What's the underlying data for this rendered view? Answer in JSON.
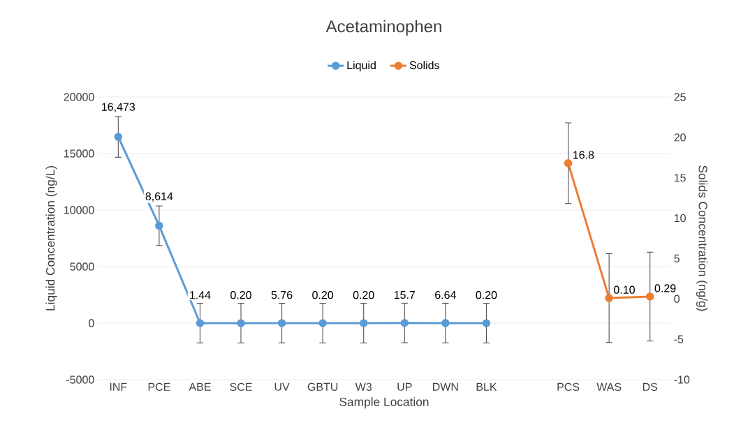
{
  "chart_data": {
    "type": "line",
    "title": "Acetaminophen",
    "xlabel": "Sample Location",
    "ylabel": "Liquid Concentration (ng/L)",
    "y2label": "Solids Concentration (ng/g)",
    "categories": [
      "INF",
      "PCE",
      "ABE",
      "SCE",
      "UV",
      "GBTU",
      "W3",
      "UP",
      "DWN",
      "BLK",
      null,
      "PCS",
      "WAS",
      "DS"
    ],
    "series": [
      {
        "name": "Liquid",
        "color": "#5b9bd5",
        "values": [
          16473,
          8614,
          1.44,
          0.2,
          5.76,
          0.2,
          0.2,
          15.7,
          6.64,
          0.2,
          null,
          null,
          null,
          null
        ],
        "errors": [
          1800,
          1750,
          1750,
          1750,
          1750,
          1750,
          1750,
          1750,
          1750,
          1750,
          null,
          null,
          null,
          null
        ],
        "value_labels": [
          "16,473",
          "8,614",
          "1.44",
          "0.20",
          "5.76",
          "0.20",
          "0.20",
          "15.7",
          "6.64",
          "0.20",
          null,
          null,
          null,
          null
        ]
      },
      {
        "name": "Solids",
        "color": "#ed7d31",
        "axis": "y2",
        "values": [
          null,
          null,
          null,
          null,
          null,
          null,
          null,
          null,
          null,
          null,
          null,
          16.8,
          0.1,
          0.29
        ],
        "errors": [
          null,
          null,
          null,
          null,
          null,
          null,
          null,
          null,
          null,
          null,
          null,
          5,
          5.5,
          5.5
        ],
        "value_labels": [
          null,
          null,
          null,
          null,
          null,
          null,
          null,
          null,
          null,
          null,
          null,
          "16.8",
          "0.10",
          "0.29"
        ]
      }
    ],
    "ylim": [
      -5000,
      20000
    ],
    "yticks": [
      -5000,
      0,
      5000,
      10000,
      15000,
      20000
    ],
    "y2lim": [
      -10,
      25
    ],
    "y2ticks": [
      -10,
      -5,
      0,
      5,
      10,
      15,
      20,
      25
    ],
    "grid": "y",
    "legend": "top",
    "marker": "circle",
    "line_style": "solid"
  }
}
